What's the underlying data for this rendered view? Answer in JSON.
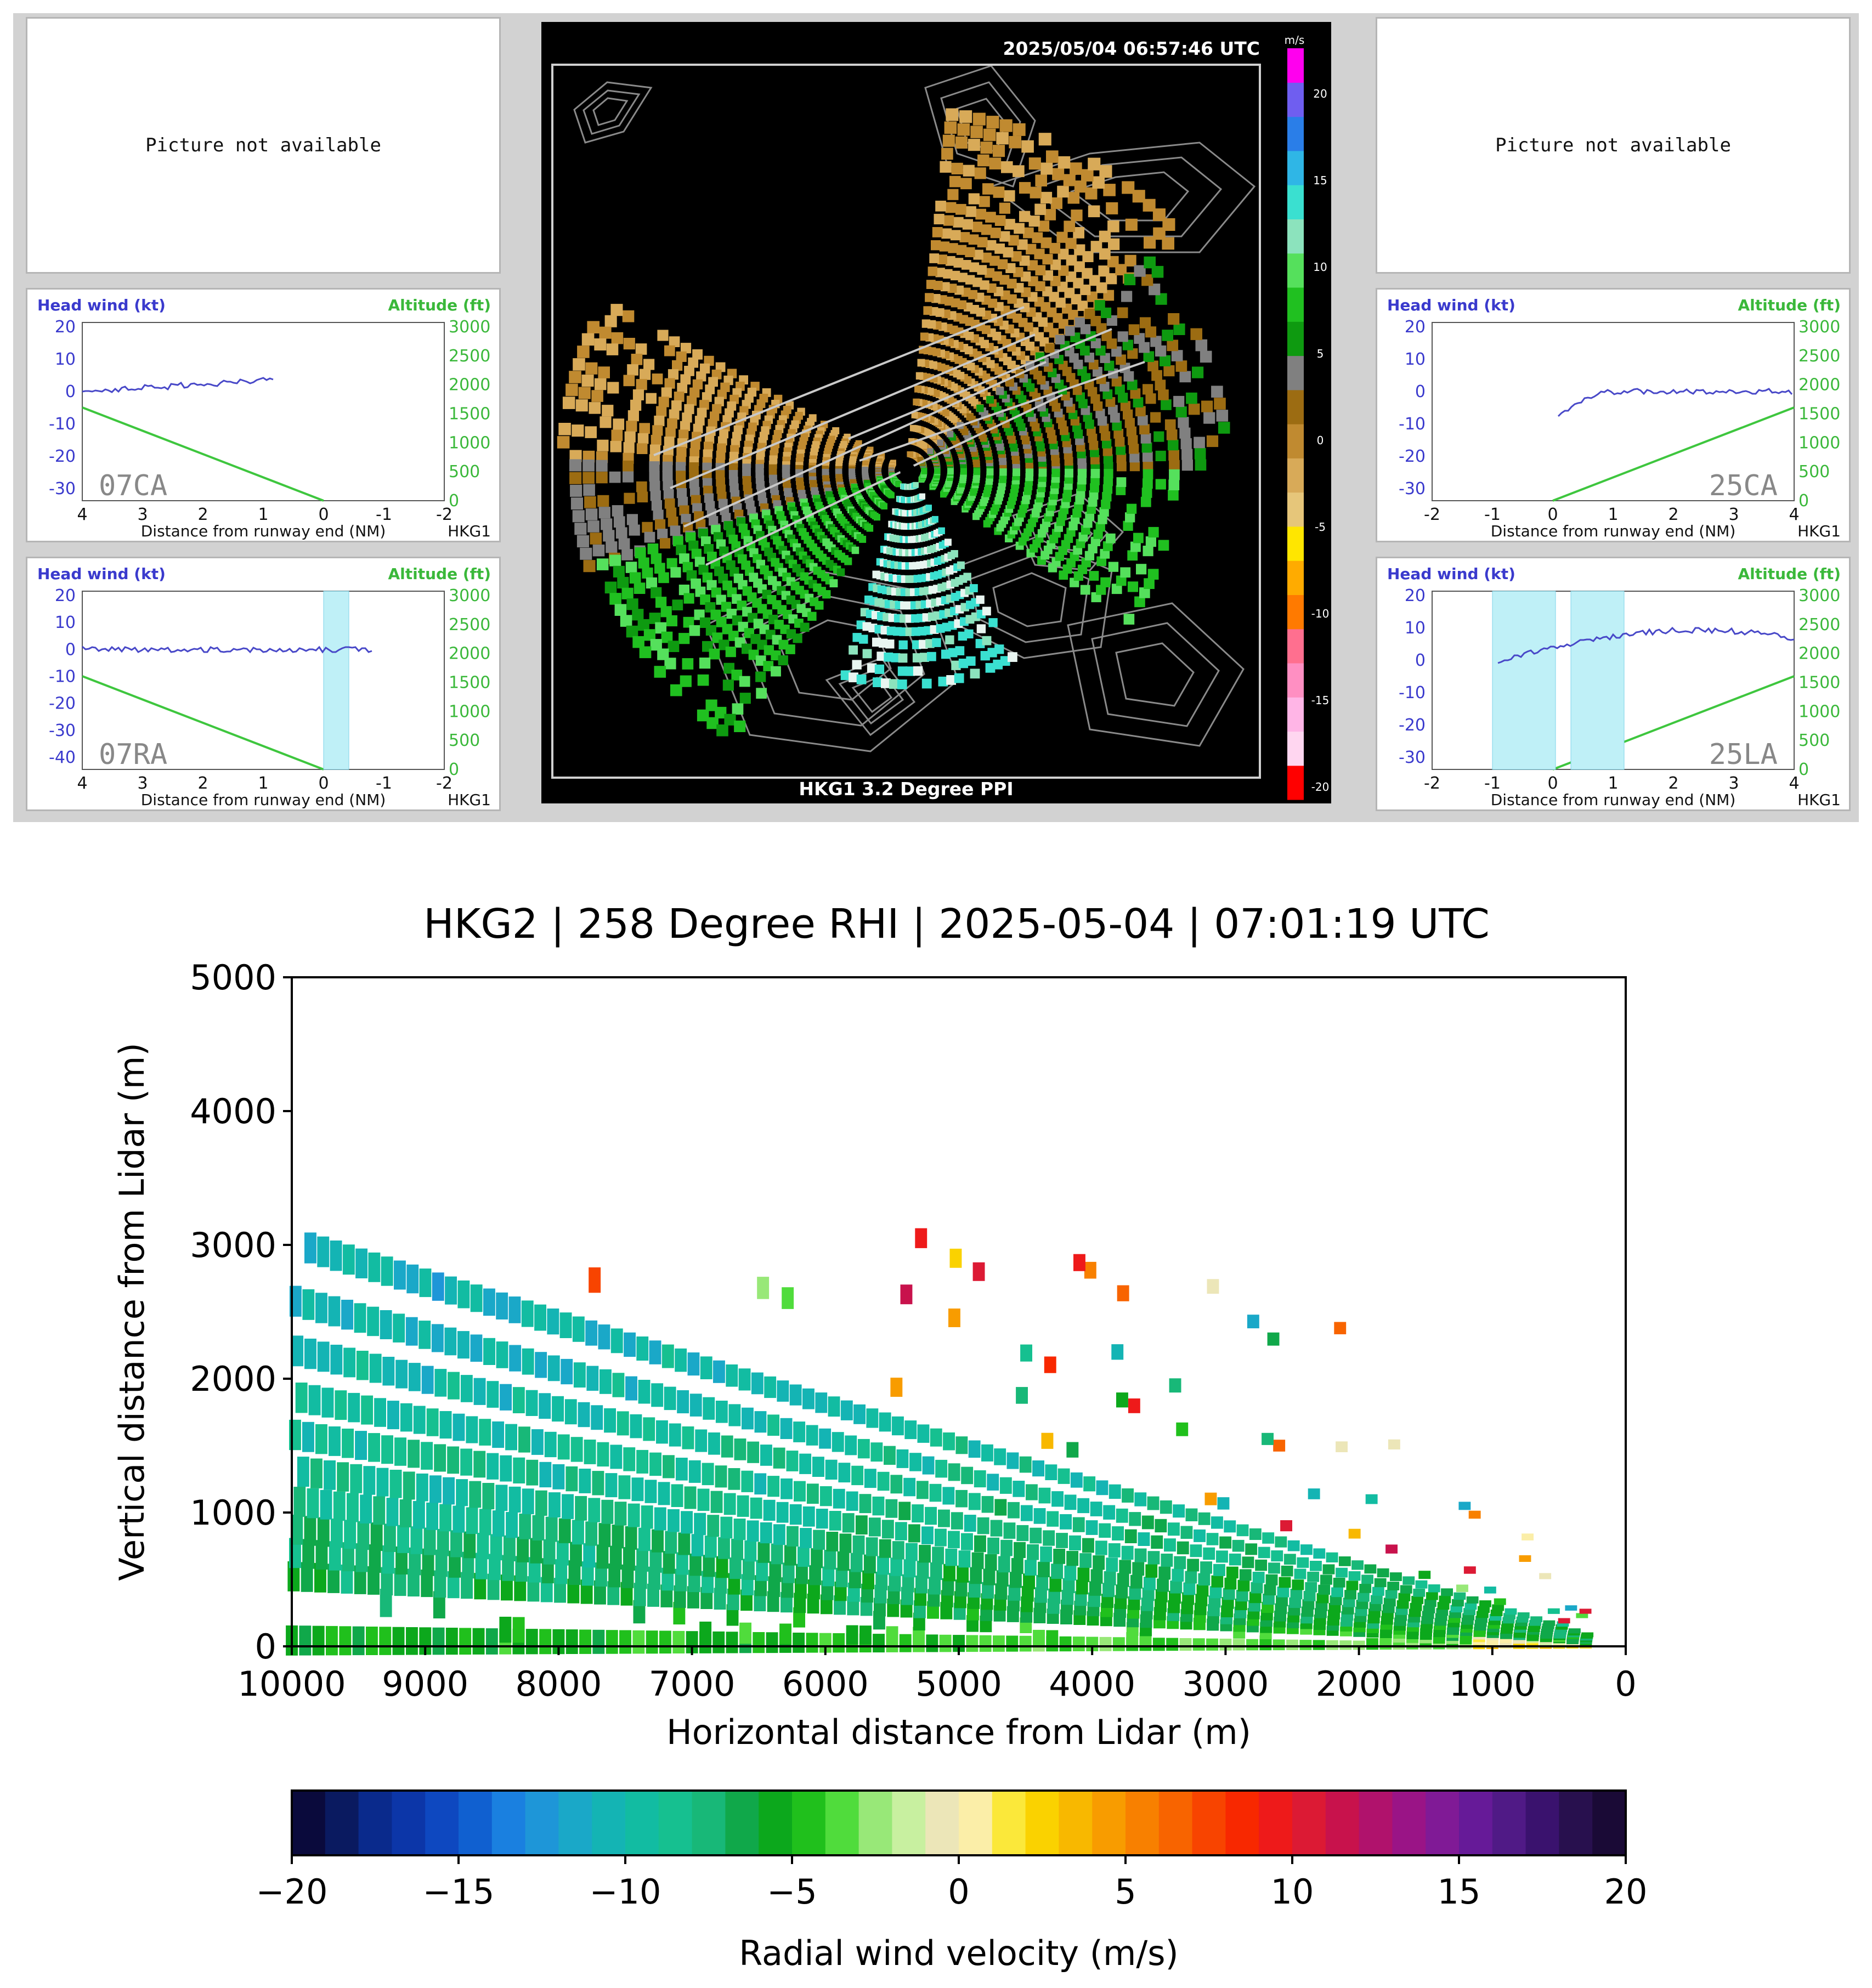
{
  "top_panel": {
    "left_na_text": "Picture not available",
    "right_na_text": "Picture not available",
    "ppi": {
      "timestamp": "2025/05/04  06:57:46 UTC",
      "caption": "HKG1 3.2 Degree PPI",
      "colorbar_unit": "m/s",
      "colorbar_ticks": [
        "20",
        "15",
        "10",
        "5",
        "0",
        "-5",
        "-10",
        "-15",
        "-20"
      ],
      "palette": [
        "#ff00ee",
        "#6f5ef0",
        "#2a7ee8",
        "#2fb6e6",
        "#3ae0d0",
        "#8ce3bd",
        "#55e05c",
        "#20c020",
        "#0e9a10",
        "#808080",
        "#9c6c12",
        "#c08a30",
        "#d8aa58",
        "#e6c67a",
        "#ffe600",
        "#ffab00",
        "#ff7a00",
        "#ff6f8f",
        "#ff8fc2",
        "#ffb5e6",
        "#ffd6f0",
        "#ff0000"
      ]
    },
    "mini_plots": [
      {
        "id": "07CA",
        "label": "07CA",
        "ylabel_left": "Head wind (kt)",
        "ylabel_right": "Altitude (ft)",
        "xlabel": "Distance from runway end (NM)",
        "station": "HKG1",
        "yticks_left": [
          "20",
          "10",
          "0",
          "-10",
          "-20",
          "-30"
        ],
        "yticks_right": [
          "3000",
          "2500",
          "2000",
          "1500",
          "1000",
          "500",
          "0"
        ],
        "xticks": [
          "4",
          "3",
          "2",
          "1",
          "0",
          "-1",
          "-2"
        ]
      },
      {
        "id": "07RA",
        "label": "07RA",
        "ylabel_left": "Head wind (kt)",
        "ylabel_right": "Altitude (ft)",
        "xlabel": "Distance from runway end (NM)",
        "station": "HKG1",
        "yticks_left": [
          "20",
          "10",
          "0",
          "-10",
          "-20",
          "-30",
          "-40"
        ],
        "yticks_right": [
          "3000",
          "2500",
          "2000",
          "1500",
          "1000",
          "500",
          "0"
        ],
        "xticks": [
          "4",
          "3",
          "2",
          "1",
          "0",
          "-1",
          "-2"
        ]
      },
      {
        "id": "25CA",
        "label": "25CA",
        "ylabel_left": "Head wind (kt)",
        "ylabel_right": "Altitude (ft)",
        "xlabel": "Distance from runway end (NM)",
        "station": "HKG1",
        "yticks_left": [
          "20",
          "10",
          "0",
          "-10",
          "-20",
          "-30"
        ],
        "yticks_right": [
          "3000",
          "2500",
          "2000",
          "1500",
          "1000",
          "500",
          "0"
        ],
        "xticks": [
          "-2",
          "-1",
          "0",
          "1",
          "2",
          "3",
          "4"
        ]
      },
      {
        "id": "25LA",
        "label": "25LA",
        "ylabel_left": "Head wind (kt)",
        "ylabel_right": "Altitude (ft)",
        "xlabel": "Distance from runway end (NM)",
        "station": "HKG1",
        "yticks_left": [
          "20",
          "10",
          "0",
          "-10",
          "-20",
          "-30"
        ],
        "yticks_right": [
          "3000",
          "2500",
          "2000",
          "1500",
          "1000",
          "500",
          "0"
        ],
        "xticks": [
          "-2",
          "-1",
          "0",
          "1",
          "2",
          "3",
          "4"
        ]
      }
    ]
  },
  "chart_data": {
    "type": "heatmap",
    "title": "HKG2 | 258 Degree RHI | 2025-05-04 | 07:01:19 UTC",
    "xlabel": "Horizontal distance from Lidar (m)",
    "ylabel": "Vertical distance from Lidar (m)",
    "xlim": [
      10000,
      0
    ],
    "ylim": [
      0,
      5000
    ],
    "xticks": [
      10000,
      9000,
      8000,
      7000,
      6000,
      5000,
      4000,
      3000,
      2000,
      1000,
      0
    ],
    "yticks": [
      0,
      1000,
      2000,
      3000,
      4000,
      5000
    ],
    "colorbar": {
      "label": "Radial wind velocity (m/s)",
      "range": [
        -20,
        20
      ],
      "ticks": [
        -20,
        -15,
        -10,
        -5,
        0,
        5,
        10,
        15,
        20
      ],
      "colors": [
        "#0a0a3c",
        "#0a1a60",
        "#0a2a8c",
        "#0c36a8",
        "#0e48c0",
        "#1060d0",
        "#1a80e0",
        "#1e96d8",
        "#1aa8c8",
        "#14b4b4",
        "#12bca2",
        "#16c090",
        "#18b878",
        "#10a84a",
        "#0ca81c",
        "#20c01c",
        "#50dc3c",
        "#98e878",
        "#c8f0a0",
        "#ece6b8",
        "#fbeea8",
        "#fbe83a",
        "#fad200",
        "#f8b800",
        "#f89c00",
        "#f88000",
        "#f86400",
        "#f84400",
        "#f82800",
        "#ee1a1a",
        "#dc1a34",
        "#c8124c",
        "#b0126c",
        "#9a1486",
        "#801a96",
        "#661a98",
        "#501a86",
        "#3a126e",
        "#28104e",
        "#1a0a36"
      ]
    }
  }
}
